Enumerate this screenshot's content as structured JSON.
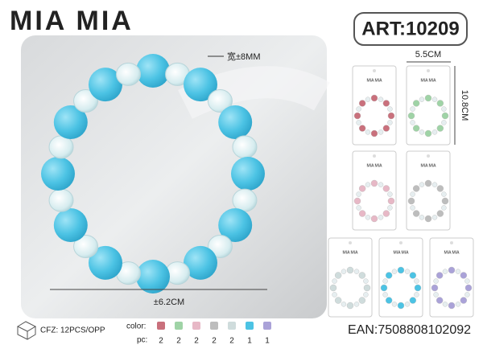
{
  "logo": "MIA MIA",
  "article": "ART:10209",
  "bead_width": "宽±8MM",
  "diameter": "±6.2CM",
  "card_width": "5.5CM",
  "card_height": "10.8CM",
  "card_brand": "MIA MIA",
  "packing": "CFZ: 12PCS/OPP",
  "color_label": "color:",
  "pc_label": "pc:",
  "variants": [
    {
      "color": "#c9707c",
      "pc": 2
    },
    {
      "color": "#9fd3a6",
      "pc": 2
    },
    {
      "color": "#e7b8c6",
      "pc": 2
    },
    {
      "color": "#bdbdbd",
      "pc": 2
    },
    {
      "color": "#cfdcdc",
      "pc": 2
    },
    {
      "color": "#4cc3e4",
      "pc": 1
    },
    {
      "color": "#aaa2d8",
      "pc": 1
    }
  ],
  "ean": "EAN:7508808102092"
}
